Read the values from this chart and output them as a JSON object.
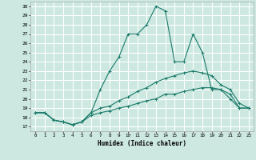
{
  "xlabel": "Humidex (Indice chaleur)",
  "bg_color": "#cce8e0",
  "grid_color": "#ffffff",
  "line_color": "#1a7a6a",
  "xlim": [
    -0.5,
    23.5
  ],
  "ylim": [
    16.5,
    30.5
  ],
  "yticks": [
    17,
    18,
    19,
    20,
    21,
    22,
    23,
    24,
    25,
    26,
    27,
    28,
    29,
    30
  ],
  "xticks": [
    0,
    1,
    2,
    3,
    4,
    5,
    6,
    7,
    8,
    9,
    10,
    11,
    12,
    13,
    14,
    15,
    16,
    17,
    18,
    19,
    20,
    21,
    22,
    23
  ],
  "series": [
    {
      "x": [
        0,
        1,
        2,
        3,
        4,
        5,
        6,
        7,
        8,
        9,
        10,
        11,
        12,
        13,
        14,
        15,
        16,
        17,
        18,
        19,
        20,
        21,
        22,
        23
      ],
      "y": [
        18.5,
        18.5,
        17.7,
        17.5,
        17.2,
        17.5,
        18.5,
        21.0,
        23.0,
        24.5,
        27.0,
        27.0,
        28.0,
        30.0,
        29.5,
        24.0,
        24.0,
        27.0,
        25.0,
        21.0,
        21.0,
        20.0,
        19.0,
        19.0
      ]
    },
    {
      "x": [
        0,
        1,
        2,
        3,
        4,
        5,
        6,
        7,
        8,
        9,
        10,
        11,
        12,
        13,
        14,
        15,
        16,
        17,
        18,
        19,
        20,
        21,
        22,
        23
      ],
      "y": [
        18.5,
        18.5,
        17.7,
        17.5,
        17.2,
        17.5,
        18.5,
        19.0,
        19.2,
        19.8,
        20.2,
        20.8,
        21.2,
        21.8,
        22.2,
        22.5,
        22.8,
        23.0,
        22.8,
        22.5,
        21.5,
        21.0,
        19.5,
        19.0
      ]
    },
    {
      "x": [
        0,
        1,
        2,
        3,
        4,
        5,
        6,
        7,
        8,
        9,
        10,
        11,
        12,
        13,
        14,
        15,
        16,
        17,
        18,
        19,
        20,
        21,
        22,
        23
      ],
      "y": [
        18.5,
        18.5,
        17.7,
        17.5,
        17.2,
        17.5,
        18.2,
        18.5,
        18.7,
        19.0,
        19.2,
        19.5,
        19.8,
        20.0,
        20.5,
        20.5,
        20.8,
        21.0,
        21.2,
        21.2,
        21.0,
        20.5,
        19.0,
        19.0
      ]
    }
  ]
}
